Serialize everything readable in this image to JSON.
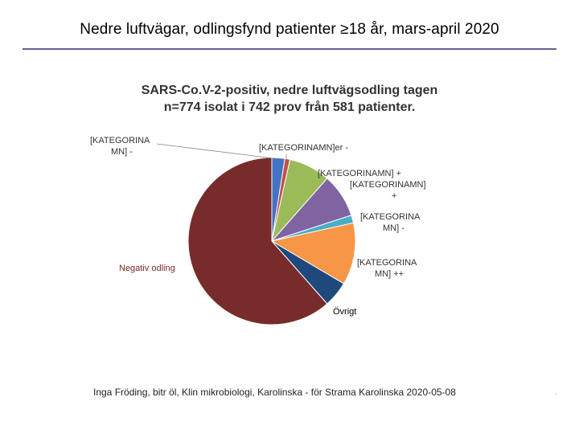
{
  "slide": {
    "title": "Nedre luftvägar, odlingsfynd patienter ≥18 år, mars-april 2020",
    "footer": "Inga Fröding, bitr öl, Klin mikrobiologi, Karolinska - för Strama Karolinska 2020-05-08",
    "corner_mark": "."
  },
  "chart_data": {
    "type": "pie",
    "title_line1": "SARS-Co.V-2-positiv, nedre luftvägsodling tagen",
    "title_line2": "n=774 isolat i 742 prov från 581 patienter.",
    "slices": [
      {
        "label_lines": [
          "[KATEGORINA",
          "MN] -"
        ],
        "value": 2.5,
        "color": "#4472c4"
      },
      {
        "label_lines": [
          "[KATEGORINAMN]er -"
        ],
        "value": 1.0,
        "color": "#c0504d"
      },
      {
        "label_lines": [
          "[KATEGORINAMN] +",
          "[KATEGORINAMN]",
          "+"
        ],
        "value": 8.0,
        "color": "#9bbb59"
      },
      {
        "label_lines": [],
        "value": 8.5,
        "color": "#8064a2"
      },
      {
        "label_lines": [
          "[KATEGORINA",
          "MN] -"
        ],
        "value": 1.5,
        "color": "#4bacc6"
      },
      {
        "label_lines": [
          "[KATEGORINA",
          "MN] ++"
        ],
        "value": 12.0,
        "color": "#f79646"
      },
      {
        "label_lines": [
          "Övrigt"
        ],
        "value": 5.0,
        "color": "#1f497d"
      },
      {
        "label_lines": [
          "Negativ odling"
        ],
        "value": 61.5,
        "color": "#772c2a"
      }
    ]
  }
}
